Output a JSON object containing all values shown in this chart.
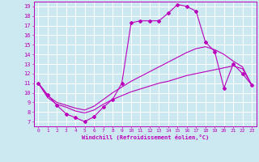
{
  "xlabel": "Windchill (Refroidissement éolien,°C)",
  "xlim": [
    -0.5,
    23.5
  ],
  "ylim": [
    6.5,
    19.5
  ],
  "yticks": [
    7,
    8,
    9,
    10,
    11,
    12,
    13,
    14,
    15,
    16,
    17,
    18,
    19
  ],
  "xticks": [
    0,
    1,
    2,
    3,
    4,
    5,
    6,
    7,
    8,
    9,
    10,
    11,
    12,
    13,
    14,
    15,
    16,
    17,
    18,
    19,
    20,
    21,
    22,
    23
  ],
  "bg_color": "#cce8f0",
  "line_color": "#bb00bb",
  "grid_color": "#ffffff",
  "line1_x": [
    0,
    1,
    2,
    3,
    4,
    5,
    6,
    7,
    8,
    9,
    10,
    11,
    12,
    13,
    14,
    15,
    16,
    17,
    18,
    19,
    20,
    21,
    22,
    23
  ],
  "line1_y": [
    11.0,
    9.8,
    8.7,
    7.8,
    7.4,
    7.0,
    7.5,
    8.5,
    9.3,
    11.0,
    17.3,
    17.5,
    17.5,
    17.5,
    18.3,
    19.2,
    19.0,
    18.5,
    15.3,
    14.3,
    10.5,
    13.0,
    12.0,
    10.8
  ],
  "line2_x": [
    0,
    23
  ],
  "line2_y": [
    11.0,
    10.8
  ],
  "line3_x": [
    0,
    23
  ],
  "line3_y": [
    11.0,
    10.8
  ],
  "smooth2_x": [
    0,
    1,
    2,
    3,
    4,
    5,
    6,
    7,
    8,
    9,
    10,
    11,
    12,
    13,
    14,
    15,
    16,
    17,
    18,
    19,
    20,
    21,
    22,
    23
  ],
  "smooth2_y": [
    11.0,
    9.7,
    9.0,
    8.7,
    8.4,
    8.2,
    8.6,
    9.3,
    10.0,
    10.6,
    11.2,
    11.7,
    12.2,
    12.7,
    13.2,
    13.7,
    14.2,
    14.6,
    14.8,
    14.5,
    14.0,
    13.3,
    12.7,
    10.8
  ],
  "smooth3_x": [
    0,
    1,
    2,
    3,
    4,
    5,
    6,
    7,
    8,
    9,
    10,
    11,
    12,
    13,
    14,
    15,
    16,
    17,
    18,
    19,
    20,
    21,
    22,
    23
  ],
  "smooth3_y": [
    11.0,
    9.5,
    8.8,
    8.5,
    8.1,
    7.9,
    8.2,
    8.8,
    9.3,
    9.7,
    10.1,
    10.4,
    10.7,
    11.0,
    11.2,
    11.5,
    11.8,
    12.0,
    12.2,
    12.4,
    12.6,
    12.8,
    12.5,
    10.8
  ]
}
